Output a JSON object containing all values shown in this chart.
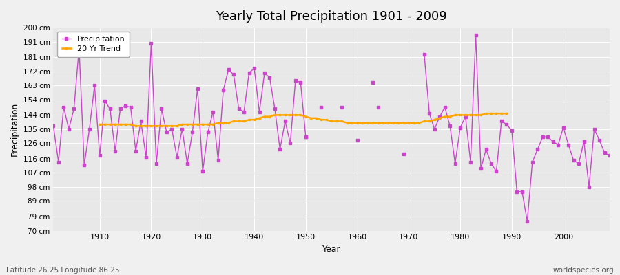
{
  "title": "Yearly Total Precipitation 1901 - 2009",
  "xlabel": "Year",
  "ylabel": "Precipitation",
  "footnote_left": "Latitude 26.25 Longitude 86.25",
  "footnote_right": "worldspecies.org",
  "ylim": [
    70,
    200
  ],
  "yticks": [
    70,
    79,
    89,
    98,
    107,
    116,
    126,
    135,
    144,
    154,
    163,
    172,
    181,
    191,
    200
  ],
  "ytick_labels": [
    "70 cm",
    "79 cm",
    "89 cm",
    "98 cm",
    "107 cm",
    "116 cm",
    "126 cm",
    "135 cm",
    "144 cm",
    "154 cm",
    "163 cm",
    "172 cm",
    "181 cm",
    "191 cm",
    "200 cm"
  ],
  "precipitation_color": "#CC44CC",
  "trend_color": "#FFA500",
  "bg_color": "#F0F0F0",
  "plot_bg_color": "#E8E8E8",
  "grid_color": "#FFFFFF",
  "years": [
    1901,
    1902,
    1903,
    1904,
    1905,
    1906,
    1907,
    1908,
    1909,
    1910,
    1911,
    1912,
    1913,
    1914,
    1915,
    1916,
    1917,
    1918,
    1919,
    1920,
    1921,
    1922,
    1923,
    1924,
    1925,
    1926,
    1927,
    1928,
    1929,
    1930,
    1931,
    1932,
    1933,
    1934,
    1935,
    1936,
    1937,
    1938,
    1939,
    1940,
    1941,
    1942,
    1943,
    1944,
    1945,
    1946,
    1947,
    1948,
    1949,
    1950,
    1951,
    1952,
    1953,
    1954,
    1955,
    1956,
    1957,
    1958,
    1959,
    1960,
    1961,
    1962,
    1963,
    1964,
    1965,
    1966,
    1967,
    1968,
    1969,
    1970,
    1971,
    1972,
    1973,
    1974,
    1975,
    1976,
    1977,
    1978,
    1979,
    1980,
    1981,
    1982,
    1983,
    1984,
    1985,
    1986,
    1987,
    1988,
    1989,
    1990,
    1991,
    1992,
    1993,
    1994,
    1995,
    1996,
    1997,
    1998,
    1999,
    2000,
    2001,
    2002,
    2003,
    2004,
    2005,
    2006,
    2007,
    2008,
    2009
  ],
  "precipitation": [
    137,
    114,
    149,
    135,
    148,
    187,
    112,
    135,
    163,
    118,
    153,
    148,
    121,
    148,
    150,
    149,
    121,
    140,
    117,
    190,
    113,
    148,
    133,
    135,
    117,
    135,
    113,
    133,
    161,
    108,
    133,
    146,
    115,
    160,
    173,
    170,
    148,
    146,
    171,
    174,
    146,
    171,
    168,
    148,
    122,
    140,
    126,
    166,
    165,
    130,
    null,
    null,
    null,
    null,
    null,
    null,
    null,
    null,
    null,
    null,
    null,
    null,
    null,
    null,
    null,
    null,
    null,
    null,
    null,
    null,
    null,
    null,
    183,
    145,
    135,
    143,
    149,
    137,
    113,
    136,
    143,
    114,
    195,
    110,
    122,
    113,
    108,
    140,
    138,
    134,
    95,
    95,
    76,
    114,
    122,
    130,
    130,
    127,
    125,
    136,
    125,
    115,
    113,
    127,
    98,
    135,
    128,
    120,
    118
  ],
  "isolated_years": [
    1950,
    1953,
    1957,
    1960,
    1963,
    1964,
    1969
  ],
  "isolated_values": [
    130,
    149,
    149,
    128,
    165,
    149,
    119
  ],
  "trend_years": [
    1910,
    1911,
    1912,
    1913,
    1914,
    1915,
    1916,
    1917,
    1918,
    1919,
    1920,
    1921,
    1922,
    1923,
    1924,
    1925,
    1926,
    1927,
    1928,
    1929,
    1930,
    1931,
    1932,
    1933,
    1934,
    1935,
    1936,
    1937,
    1938,
    1939,
    1940,
    1941,
    1942,
    1943,
    1944,
    1945,
    1946,
    1947,
    1948,
    1949,
    1950,
    1951,
    1952,
    1953,
    1954,
    1955,
    1956,
    1957,
    1958,
    1959,
    1960,
    1961,
    1962,
    1963,
    1964,
    1965,
    1966,
    1967,
    1968,
    1969,
    1970,
    1971,
    1972,
    1973,
    1974,
    1975,
    1976,
    1977,
    1978,
    1979,
    1980,
    1981,
    1982,
    1983,
    1984,
    1985,
    1986,
    1987,
    1988,
    1989
  ],
  "trend": [
    138,
    138,
    138,
    138,
    138,
    138,
    138,
    137,
    137,
    137,
    137,
    137,
    137,
    137,
    137,
    137,
    138,
    138,
    138,
    138,
    138,
    138,
    138,
    139,
    139,
    139,
    140,
    140,
    140,
    141,
    141,
    142,
    143,
    143,
    144,
    144,
    144,
    144,
    144,
    144,
    143,
    142,
    142,
    141,
    141,
    140,
    140,
    140,
    139,
    139,
    139,
    139,
    139,
    139,
    139,
    139,
    139,
    139,
    139,
    139,
    139,
    139,
    139,
    140,
    140,
    141,
    142,
    143,
    143,
    144,
    144,
    144,
    144,
    144,
    144,
    145,
    145,
    145,
    145,
    145
  ]
}
